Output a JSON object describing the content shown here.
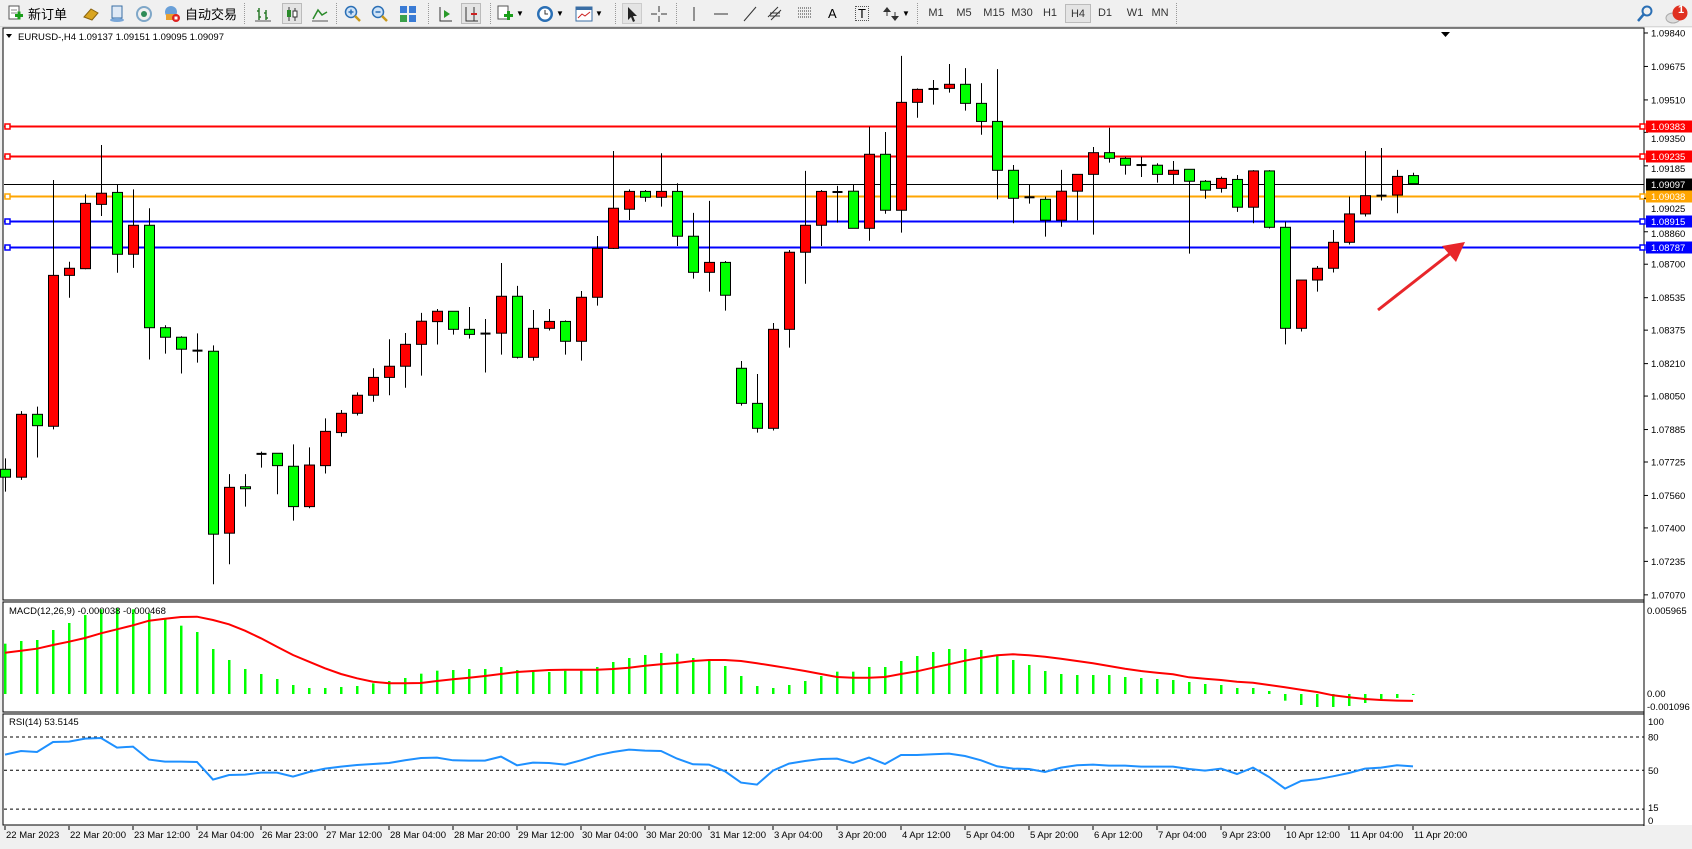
{
  "toolbar": {
    "new_order_label": "新订单",
    "auto_trading_label": "自动交易",
    "timeframes": [
      "M1",
      "M5",
      "M15",
      "M30",
      "H1",
      "H4",
      "D1",
      "W1",
      "MN"
    ],
    "active_timeframe": "H4",
    "notification_count": "1",
    "icons": [
      "new-order-icon",
      "gold-icon",
      "market-watch-icon",
      "signals-icon",
      "auto-trading-icon",
      "bar-chart-icon",
      "candlestick-icon",
      "line-chart-icon",
      "zoom-in-icon",
      "zoom-out-icon",
      "tile-windows-icon",
      "auto-scroll-icon",
      "chart-shift-icon",
      "indicators-icon",
      "periods-icon",
      "templates-icon",
      "cursor-icon",
      "crosshair-icon",
      "vertical-line-icon",
      "horizontal-line-icon",
      "trendline-icon",
      "equidistant-channel-icon",
      "fibonacci-icon",
      "text-icon",
      "text-label-icon",
      "arrows-icon",
      "search-icon",
      "notification-icon"
    ],
    "text_tool": "A",
    "label_tool": "T"
  },
  "chart": {
    "header": "EURUSD-,H4  1.09137 1.09151 1.09095 1.09097",
    "macd_header": "MACD(12,26,9) -0.000038 -0.000468",
    "rsi_header": "RSI(14) 53.5145",
    "colors": {
      "bull": "#ff0000",
      "bear": "#00ff00",
      "signal": "#ff0000",
      "histogram": "#00ff00",
      "rsi": "#1e90ff",
      "bid_line": "#000000"
    }
  },
  "chart_data": {
    "type": "candlestick",
    "symbol": "EURUSD-",
    "timeframe": "H4",
    "price_axis": {
      "ticks": [
        "1.09840",
        "1.09675",
        "1.09510",
        "1.09350",
        "1.09185",
        "1.09025",
        "1.08860",
        "1.08700",
        "1.08535",
        "1.08375",
        "1.08210",
        "1.08050",
        "1.07885",
        "1.07725",
        "1.07560",
        "1.07400",
        "1.07235",
        "1.07070"
      ],
      "range": [
        1.0707,
        1.0984
      ]
    },
    "levels": [
      {
        "price": "1.09383",
        "color": "#ff0000"
      },
      {
        "price": "1.09235",
        "color": "#ff0000"
      },
      {
        "price": "1.09097",
        "color": "#000000",
        "current": true
      },
      {
        "price": "1.09038",
        "color": "#ffa500"
      },
      {
        "price": "1.08915",
        "color": "#0000ff"
      },
      {
        "price": "1.08787",
        "color": "#0000ff"
      }
    ],
    "time_labels": [
      "22 Mar 2023",
      "22 Mar 20:00",
      "23 Mar 12:00",
      "24 Mar 04:00",
      "26 Mar 23:00",
      "27 Mar 12:00",
      "28 Mar 04:00",
      "28 Mar 20:00",
      "29 Mar 12:00",
      "30 Mar 04:00",
      "30 Mar 20:00",
      "31 Mar 12:00",
      "3 Apr 04:00",
      "3 Apr 20:00",
      "4 Apr 12:00",
      "5 Apr 04:00",
      "5 Apr 20:00",
      "6 Apr 12:00",
      "7 Apr 04:00",
      "9 Apr 23:00",
      "10 Apr 12:00",
      "11 Apr 04:00",
      "11 Apr 20:00"
    ],
    "ohlc_fields": [
      "open",
      "high",
      "low",
      "close"
    ],
    "candles": [
      [
        1.07689,
        1.07743,
        1.07579,
        1.0765
      ],
      [
        1.0765,
        1.07976,
        1.07637,
        1.0796
      ],
      [
        1.0796,
        1.07998,
        1.07747,
        1.07904
      ],
      [
        1.07901,
        1.09115,
        1.07886,
        1.08645
      ],
      [
        1.08645,
        1.08712,
        1.08535,
        1.0868
      ],
      [
        1.08678,
        1.09045,
        1.08675,
        1.09
      ],
      [
        1.08995,
        1.09288,
        1.08938,
        1.0905
      ],
      [
        1.09054,
        1.09094,
        1.08658,
        1.08749
      ],
      [
        1.08749,
        1.09069,
        1.08682,
        1.08892
      ],
      [
        1.08892,
        1.08976,
        1.0823,
        1.08387
      ],
      [
        1.08387,
        1.08399,
        1.08259,
        1.0834
      ],
      [
        1.0834,
        1.08345,
        1.08161,
        1.08281
      ],
      [
        1.08274,
        1.08359,
        1.08215,
        1.08272
      ],
      [
        1.08271,
        1.083,
        1.07122,
        1.07369
      ],
      [
        1.07374,
        1.07665,
        1.07221,
        1.076
      ],
      [
        1.07603,
        1.07665,
        1.07505,
        1.07594
      ],
      [
        1.07765,
        1.07776,
        1.07697,
        1.07767
      ],
      [
        1.07768,
        1.07768,
        1.07566,
        1.07707
      ],
      [
        1.07704,
        1.07812,
        1.07436,
        1.07505
      ],
      [
        1.07505,
        1.07797,
        1.07497,
        1.0771
      ],
      [
        1.07707,
        1.0794,
        1.07668,
        1.07876
      ],
      [
        1.0787,
        1.07981,
        1.0785,
        1.07965
      ],
      [
        1.07965,
        1.08068,
        1.07954,
        1.08054
      ],
      [
        1.08054,
        1.08187,
        1.08022,
        1.08142
      ],
      [
        1.08142,
        1.0833,
        1.08054,
        1.08197
      ],
      [
        1.08197,
        1.08361,
        1.08091,
        1.08305
      ],
      [
        1.08305,
        1.0846,
        1.08151,
        1.08419
      ],
      [
        1.08417,
        1.08479,
        1.08304,
        1.08468
      ],
      [
        1.08468,
        1.08468,
        1.08353,
        1.08379
      ],
      [
        1.08379,
        1.08489,
        1.08333,
        1.08354
      ],
      [
        1.08358,
        1.0843,
        1.08166,
        1.08356
      ],
      [
        1.0836,
        1.08706,
        1.08254,
        1.08542
      ],
      [
        1.08542,
        1.08593,
        1.08235,
        1.08241
      ],
      [
        1.08241,
        1.08474,
        1.08225,
        1.08384
      ],
      [
        1.08384,
        1.08479,
        1.08373,
        1.08418
      ],
      [
        1.08418,
        1.08423,
        1.08254,
        1.0832
      ],
      [
        1.0832,
        1.08568,
        1.08225,
        1.08537
      ],
      [
        1.08537,
        1.08839,
        1.08496,
        1.08778
      ],
      [
        1.08778,
        1.09258,
        1.08775,
        1.08976
      ],
      [
        1.08971,
        1.09069,
        1.08918,
        1.09059
      ],
      [
        1.09059,
        1.09066,
        1.09008,
        1.0903
      ],
      [
        1.0903,
        1.09247,
        1.08984,
        1.09059
      ],
      [
        1.09059,
        1.09099,
        1.0879,
        1.08838
      ],
      [
        1.08838,
        1.08953,
        1.08629,
        1.0866
      ],
      [
        1.0866,
        1.09012,
        1.08565,
        1.08709
      ],
      [
        1.08709,
        1.08716,
        1.08471,
        1.08547
      ],
      [
        1.08187,
        1.08223,
        1.08003,
        1.08014
      ],
      [
        1.08014,
        1.08159,
        1.0787,
        1.07891
      ],
      [
        1.07891,
        1.0841,
        1.0788,
        1.08379
      ],
      [
        1.08379,
        1.0877,
        1.08289,
        1.08759
      ],
      [
        1.08759,
        1.0916,
        1.08604,
        1.08892
      ],
      [
        1.08892,
        1.09066,
        1.0879,
        1.09059
      ],
      [
        1.09056,
        1.09086,
        1.08905,
        1.09054
      ],
      [
        1.0906,
        1.09094,
        1.08877,
        1.08877
      ],
      [
        1.08877,
        1.09378,
        1.08816,
        1.09242
      ],
      [
        1.09242,
        1.09352,
        1.08949,
        1.08966
      ],
      [
        1.08966,
        1.09727,
        1.08856,
        1.09498
      ],
      [
        1.09498,
        1.09567,
        1.09422,
        1.09562
      ],
      [
        1.09564,
        1.09608,
        1.09487,
        1.09562
      ],
      [
        1.09567,
        1.09687,
        1.09546,
        1.09587
      ],
      [
        1.09587,
        1.09667,
        1.09457,
        1.09493
      ],
      [
        1.09493,
        1.09593,
        1.09338,
        1.09404
      ],
      [
        1.09404,
        1.09662,
        1.0902,
        1.09163
      ],
      [
        1.09163,
        1.09189,
        1.08902,
        1.09025
      ],
      [
        1.0903,
        1.09094,
        1.08999,
        1.09028
      ],
      [
        1.0902,
        1.09033,
        1.08836,
        1.08917
      ],
      [
        1.08917,
        1.09165,
        1.08885,
        1.0906
      ],
      [
        1.0906,
        1.09144,
        1.08917,
        1.09143
      ],
      [
        1.09143,
        1.09278,
        1.08846,
        1.0925
      ],
      [
        1.0925,
        1.09373,
        1.09201,
        1.09222
      ],
      [
        1.09222,
        1.09229,
        1.09142,
        1.09188
      ],
      [
        1.09189,
        1.09229,
        1.0913,
        1.09187
      ],
      [
        1.09188,
        1.09198,
        1.09102,
        1.09143
      ],
      [
        1.09143,
        1.09209,
        1.09094,
        1.09163
      ],
      [
        1.09168,
        1.09168,
        1.08752,
        1.09109
      ],
      [
        1.09109,
        1.09115,
        1.09023,
        1.09065
      ],
      [
        1.09074,
        1.09132,
        1.09053,
        1.09123
      ],
      [
        1.09118,
        1.0914,
        1.08958,
        1.08981
      ],
      [
        1.08981,
        1.09164,
        1.08902,
        1.0916
      ],
      [
        1.0916,
        1.09164,
        1.08876,
        1.08882
      ],
      [
        1.08882,
        1.0891,
        1.08305,
        1.08384
      ],
      [
        1.08384,
        1.08622,
        1.08368,
        1.08622
      ],
      [
        1.08622,
        1.08691,
        1.08565,
        1.0868
      ],
      [
        1.0868,
        1.08869,
        1.08659,
        1.08808
      ],
      [
        1.08808,
        1.09033,
        1.08797,
        1.08948
      ],
      [
        1.08948,
        1.09258,
        1.08935,
        1.09038
      ],
      [
        1.09038,
        1.09273,
        1.09014,
        1.0904
      ],
      [
        1.09041,
        1.09165,
        1.08951,
        1.09133
      ],
      [
        1.09137,
        1.09151,
        1.09095,
        1.09097
      ]
    ],
    "macd": {
      "axis_labels": [
        "0.005965",
        "0.00",
        "-0.001096"
      ],
      "histogram": [
        0.003438,
        0.00362,
        0.003689,
        0.004372,
        0.00485,
        0.005396,
        0.005784,
        0.005852,
        0.005784,
        0.00551,
        0.005123,
        0.004668,
        0.004235,
        0.003074,
        0.002323,
        0.001708,
        0.001366,
        0.001025,
        0.000615,
        0.00041,
        0.00041,
        0.000478,
        0.000546,
        0.000729,
        0.000888,
        0.001093,
        0.001389,
        0.001594,
        0.001639,
        0.001708,
        0.001708,
        0.001844,
        0.001639,
        0.001594,
        0.001503,
        0.001594,
        0.001594,
        0.001844,
        0.002186,
        0.002459,
        0.002664,
        0.002801,
        0.002755,
        0.002459,
        0.002323,
        0.001913,
        0.00123,
        0.000546,
        0.00041,
        0.000615,
        0.000888,
        0.00123,
        0.001526,
        0.001526,
        0.001844,
        0.001844,
        0.002254,
        0.002596,
        0.002869,
        0.003074,
        0.003074,
        0.003006,
        0.002596,
        0.002323,
        0.001981,
        0.001571,
        0.001366,
        0.001298,
        0.001298,
        0.001298,
        0.001161,
        0.001093,
        0.001025,
        0.000956,
        0.00082,
        0.000683,
        0.000615,
        0.00041,
        0.00041,
        0.000205,
        -0.000455,
        -0.000751,
        -0.000888,
        -0.000888,
        -0.00082,
        -0.000615,
        -0.00041,
        -0.000273,
        -3.8e-05
      ],
      "signal": [
        0.002823,
        0.00296,
        0.003097,
        0.003347,
        0.003575,
        0.003825,
        0.004144,
        0.004417,
        0.004691,
        0.005009,
        0.005146,
        0.00526,
        0.005283,
        0.005055,
        0.004759,
        0.004326,
        0.003803,
        0.003233,
        0.002664,
        0.002209,
        0.001753,
        0.001366,
        0.00107,
        0.000842,
        0.000729,
        0.000729,
        0.000751,
        0.000888,
        0.001002,
        0.001116,
        0.00123,
        0.001366,
        0.001503,
        0.001571,
        0.001639,
        0.001662,
        0.001662,
        0.001662,
        0.001708,
        0.001799,
        0.001935,
        0.002027,
        0.002118,
        0.002254,
        0.002323,
        0.002323,
        0.002254,
        0.002095,
        0.001935,
        0.001753,
        0.001571,
        0.001366,
        0.001161,
        0.001116,
        0.001116,
        0.001161,
        0.001366,
        0.001548,
        0.001799,
        0.002027,
        0.002277,
        0.002482,
        0.002641,
        0.00271,
        0.002641,
        0.00255,
        0.002414,
        0.002254,
        0.002095,
        0.001913,
        0.001731,
        0.001571,
        0.001457,
        0.001343,
        0.001139,
        0.001047,
        0.000956,
        0.000842,
        0.000774,
        0.000615,
        0.000455,
        0.000296,
        0.000137,
        -9.1e-05,
        -0.000228,
        -0.000342,
        -0.00041,
        -0.00045,
        -0.000468
      ],
      "range": [
        -0.001096,
        0.005965
      ]
    },
    "rsi": {
      "axis_labels": [
        "100",
        "80",
        "50",
        "15",
        "0"
      ],
      "levels": [
        80,
        50,
        15
      ],
      "values": [
        64.1,
        67.4,
        66.5,
        75.5,
        75.8,
        78.5,
        79.1,
        70.4,
        71.3,
        59.6,
        57.8,
        57.8,
        57.5,
        41.6,
        45.8,
        46.1,
        47.9,
        47.9,
        44.3,
        48.5,
        51.5,
        53.3,
        54.8,
        55.7,
        56.6,
        59.0,
        61.1,
        61.4,
        59.0,
        58.7,
        58.7,
        62.3,
        54.5,
        56.9,
        56.6,
        55.1,
        59.0,
        63.5,
        66.5,
        68.6,
        67.7,
        67.4,
        60.5,
        55.4,
        55.1,
        49.1,
        38.9,
        37.1,
        49.7,
        56.0,
        58.4,
        60.2,
        60.5,
        56.6,
        61.4,
        55.7,
        63.8,
        63.8,
        64.4,
        65.0,
        62.9,
        59.0,
        53.6,
        51.5,
        51.2,
        48.5,
        52.4,
        54.5,
        55.1,
        54.2,
        54.2,
        53.3,
        53.3,
        53.3,
        51.2,
        49.7,
        51.5,
        46.7,
        52.4,
        44.0,
        33.5,
        40.4,
        41.9,
        44.6,
        47.6,
        51.5,
        52.4,
        54.5,
        53.5145
      ],
      "range": [
        0,
        100
      ]
    },
    "annotation_arrow": {
      "color": "#e8262a",
      "direction": "up-right"
    }
  }
}
